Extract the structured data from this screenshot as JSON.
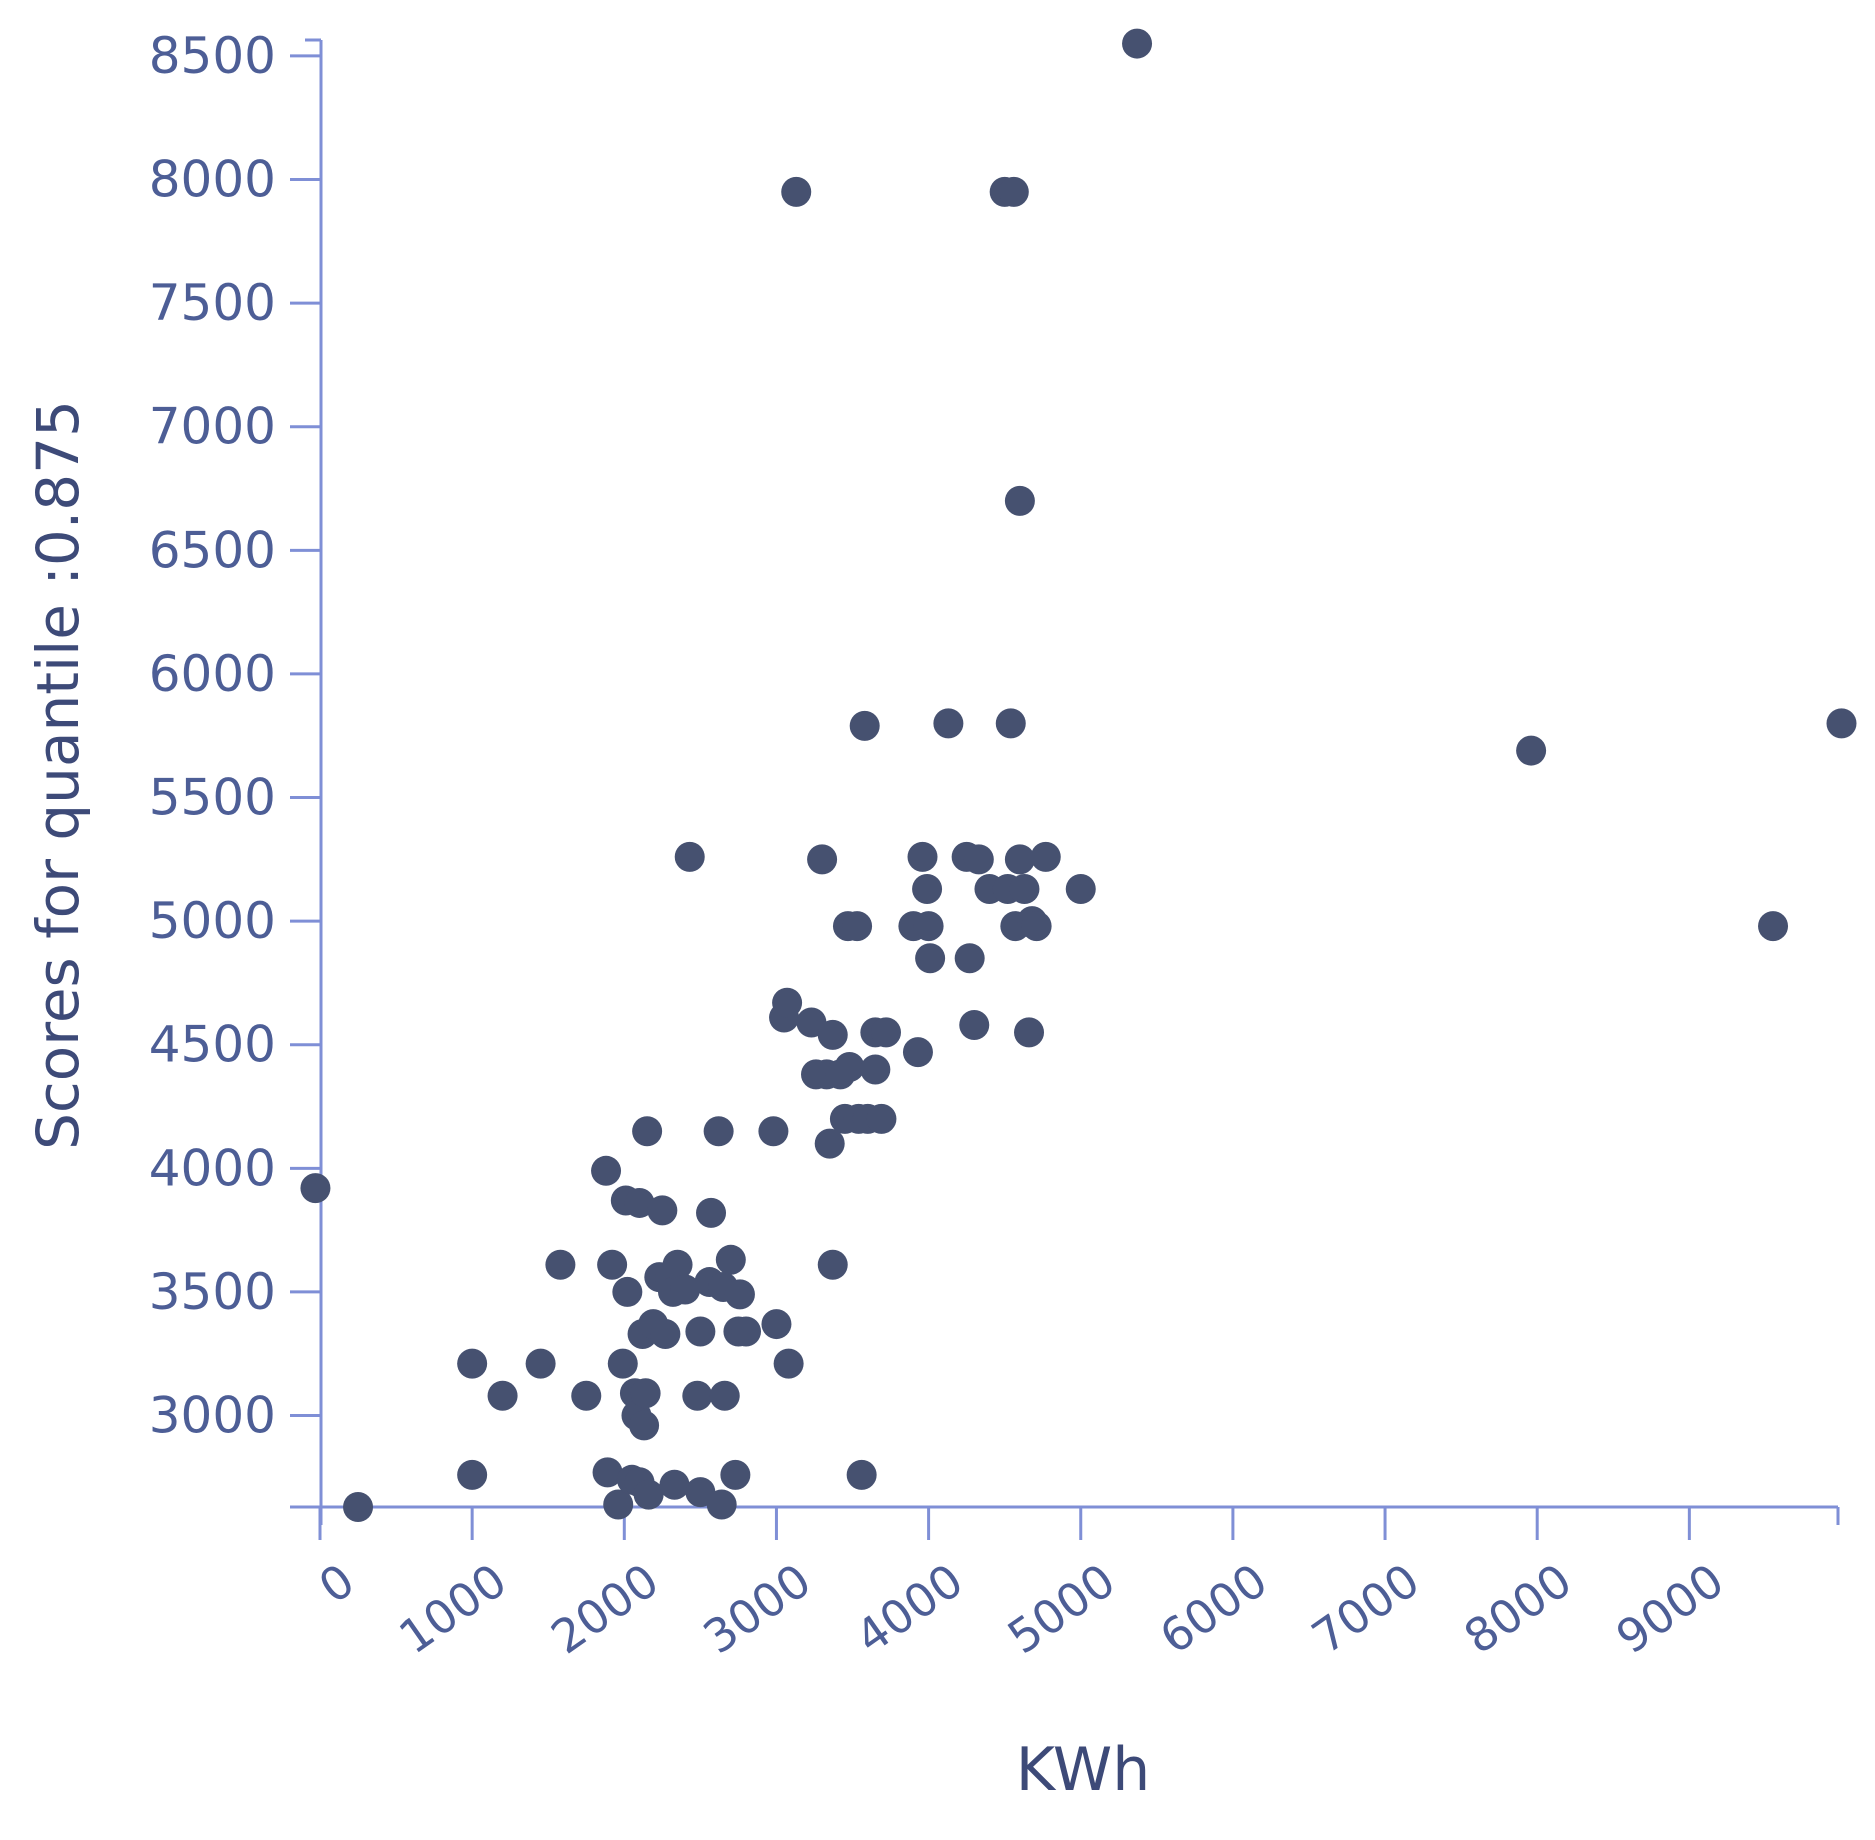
{
  "chart_data": {
    "type": "scatter",
    "title": "",
    "xlabel": "KWh",
    "ylabel": "Scores for quantile :0.875",
    "xlim": [
      -50,
      10000
    ],
    "ylim": [
      2630,
      8550
    ],
    "x_ticks": [
      0,
      1000,
      2000,
      3000,
      4000,
      5000,
      6000,
      7000,
      8000,
      9000
    ],
    "y_ticks": [
      3000,
      3500,
      4000,
      4500,
      5000,
      5500,
      6000,
      6500,
      7000,
      7500,
      8000,
      8500
    ],
    "grid": false,
    "colors": {
      "axis": "#7f8fd6",
      "tick_text": "#4d5e96",
      "label_text": "#3d4a78",
      "point": "#465170"
    },
    "points": [
      [
        -30,
        3920
      ],
      [
        250,
        2630
      ],
      [
        1000,
        3210
      ],
      [
        1000,
        2760
      ],
      [
        1200,
        3080
      ],
      [
        1450,
        3210
      ],
      [
        1580,
        3610
      ],
      [
        1750,
        3080
      ],
      [
        1880,
        3990
      ],
      [
        1890,
        2770
      ],
      [
        1920,
        3610
      ],
      [
        1960,
        2640
      ],
      [
        1990,
        3210
      ],
      [
        2010,
        3870
      ],
      [
        2020,
        3500
      ],
      [
        2050,
        2740
      ],
      [
        2070,
        3090
      ],
      [
        2080,
        3000
      ],
      [
        2100,
        3860
      ],
      [
        2100,
        2730
      ],
      [
        2120,
        3330
      ],
      [
        2130,
        2960
      ],
      [
        2140,
        3090
      ],
      [
        2150,
        4150
      ],
      [
        2160,
        2680
      ],
      [
        2190,
        3370
      ],
      [
        2230,
        3560
      ],
      [
        2250,
        3830
      ],
      [
        2270,
        3330
      ],
      [
        2300,
        3560
      ],
      [
        2320,
        3500
      ],
      [
        2330,
        2720
      ],
      [
        2350,
        3610
      ],
      [
        2400,
        3510
      ],
      [
        2430,
        5260
      ],
      [
        2480,
        3080
      ],
      [
        2500,
        3340
      ],
      [
        2500,
        2690
      ],
      [
        2560,
        3540
      ],
      [
        2570,
        3820
      ],
      [
        2620,
        4150
      ],
      [
        2640,
        2640
      ],
      [
        2650,
        3520
      ],
      [
        2660,
        3080
      ],
      [
        2700,
        3630
      ],
      [
        2730,
        2760
      ],
      [
        2750,
        3340
      ],
      [
        2760,
        3490
      ],
      [
        2800,
        3340
      ],
      [
        2980,
        4150
      ],
      [
        3000,
        3370
      ],
      [
        3050,
        4610
      ],
      [
        3070,
        4670
      ],
      [
        3080,
        3210
      ],
      [
        3130,
        7950
      ],
      [
        3230,
        4590
      ],
      [
        3260,
        4380
      ],
      [
        3300,
        5250
      ],
      [
        3330,
        4380
      ],
      [
        3350,
        4100
      ],
      [
        3370,
        3610
      ],
      [
        3370,
        4540
      ],
      [
        3420,
        4380
      ],
      [
        3450,
        4200
      ],
      [
        3470,
        4980
      ],
      [
        3480,
        4410
      ],
      [
        3530,
        4980
      ],
      [
        3540,
        4200
      ],
      [
        3560,
        2760
      ],
      [
        3580,
        5790
      ],
      [
        3600,
        4200
      ],
      [
        3650,
        4400
      ],
      [
        3650,
        4550
      ],
      [
        3690,
        4200
      ],
      [
        3720,
        4550
      ],
      [
        3900,
        4980
      ],
      [
        3930,
        4470
      ],
      [
        3960,
        5260
      ],
      [
        3990,
        5130
      ],
      [
        4000,
        4980
      ],
      [
        4010,
        4850
      ],
      [
        4130,
        5800
      ],
      [
        4250,
        5260
      ],
      [
        4270,
        4850
      ],
      [
        4300,
        4580
      ],
      [
        4330,
        5250
      ],
      [
        4400,
        5130
      ],
      [
        4500,
        7950
      ],
      [
        4520,
        5130
      ],
      [
        4540,
        5800
      ],
      [
        4560,
        7950
      ],
      [
        4570,
        4980
      ],
      [
        4600,
        6700
      ],
      [
        4600,
        5250
      ],
      [
        4630,
        5130
      ],
      [
        4660,
        4550
      ],
      [
        4680,
        5000
      ],
      [
        4710,
        4980
      ],
      [
        4770,
        5260
      ],
      [
        5000,
        5130
      ],
      [
        5370,
        8550
      ],
      [
        7960,
        5690
      ],
      [
        9550,
        4980
      ],
      [
        10000,
        5800
      ]
    ]
  }
}
